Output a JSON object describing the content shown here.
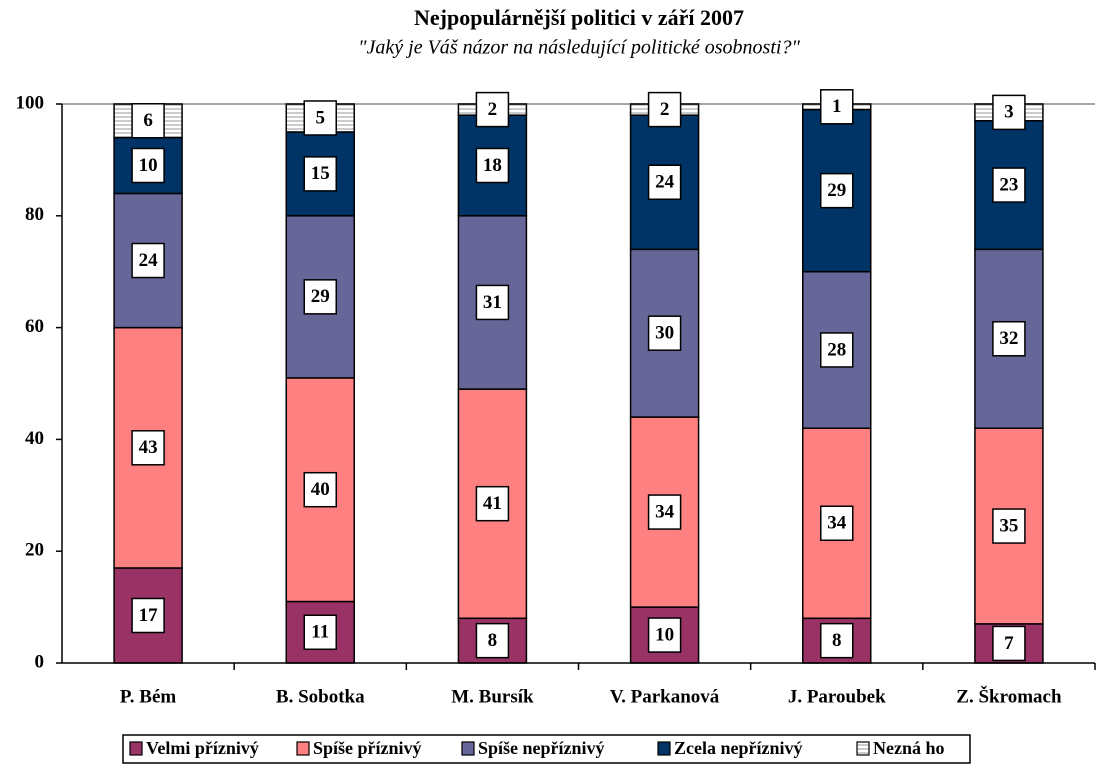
{
  "chart_data": {
    "type": "stacked_bar",
    "title": "Nejpopulárnější politici v září 2007",
    "subtitle": "\"Jaký je Váš názor na následující politické osobnosti?\"",
    "categories": [
      "P. Bém",
      "B. Sobotka",
      "M. Bursík",
      "V. Parkanová",
      "J. Paroubek",
      "Z. Škromach"
    ],
    "series": [
      {
        "name": "Velmi příznivý",
        "color": "#993366",
        "values": [
          17,
          11,
          8,
          10,
          8,
          7
        ]
      },
      {
        "name": "Spíše příznivý",
        "color": "#ff8080",
        "values": [
          43,
          40,
          41,
          34,
          34,
          35
        ]
      },
      {
        "name": "Spíše nepříznivý",
        "color": "#666699",
        "values": [
          24,
          29,
          31,
          30,
          28,
          32
        ]
      },
      {
        "name": "Zcela nepříznivý",
        "color": "#003366",
        "values": [
          10,
          15,
          18,
          24,
          29,
          23
        ]
      },
      {
        "name": "Nezná ho",
        "color": "#ffffff",
        "hatch": true,
        "values": [
          6,
          5,
          2,
          2,
          1,
          3
        ]
      }
    ],
    "ylim": [
      0,
      100
    ],
    "yticks": [
      0,
      20,
      40,
      60,
      80,
      100
    ],
    "legend": "bottom"
  }
}
